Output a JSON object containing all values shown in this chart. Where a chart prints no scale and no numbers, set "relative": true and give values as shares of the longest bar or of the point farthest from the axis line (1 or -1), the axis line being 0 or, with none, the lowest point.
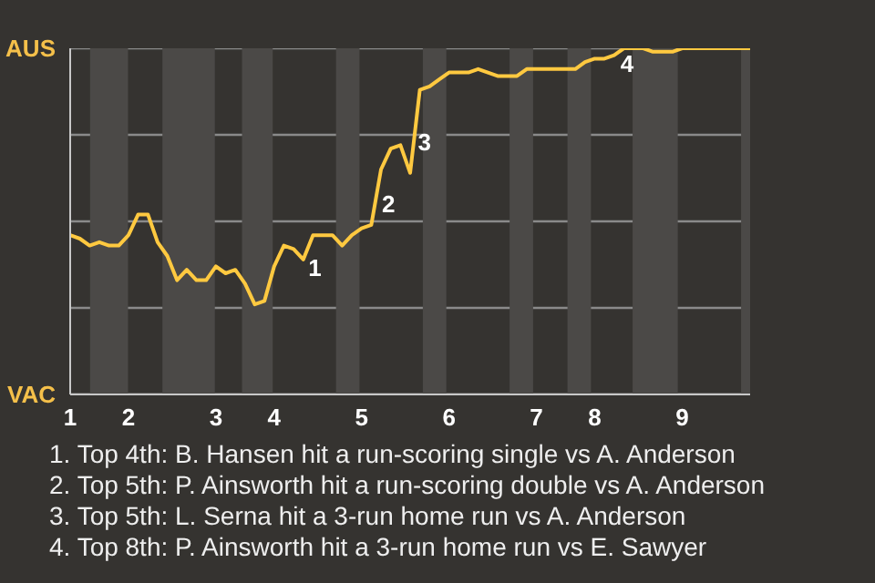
{
  "chart_data": {
    "type": "line",
    "relative": true,
    "categories": [
      "1",
      null,
      null,
      null,
      null,
      null,
      "2",
      null,
      null,
      null,
      null,
      null,
      null,
      null,
      null,
      "3",
      null,
      null,
      null,
      null,
      null,
      "4",
      null,
      null,
      null,
      null,
      null,
      null,
      null,
      null,
      "5",
      null,
      null,
      null,
      null,
      null,
      null,
      null,
      null,
      "6",
      null,
      null,
      null,
      null,
      null,
      null,
      null,
      null,
      "7",
      null,
      null,
      null,
      null,
      null,
      "8",
      null,
      null,
      null,
      null,
      null,
      null,
      null,
      null,
      "9",
      null,
      null,
      null,
      null,
      null,
      null,
      null
    ],
    "series": [
      {
        "color": "#ffc940",
        "values": [
          0.46,
          0.45,
          0.43,
          0.44,
          0.43,
          0.43,
          0.46,
          0.52,
          0.52,
          0.44,
          0.4,
          0.33,
          0.36,
          0.33,
          0.33,
          0.37,
          0.35,
          0.36,
          0.32,
          0.26,
          0.27,
          0.37,
          0.43,
          0.42,
          0.39,
          0.46,
          0.46,
          0.46,
          0.43,
          0.46,
          0.48,
          0.49,
          0.65,
          0.71,
          0.72,
          0.64,
          0.88,
          0.89,
          0.91,
          0.93,
          0.93,
          0.93,
          0.94,
          0.93,
          0.92,
          0.92,
          0.92,
          0.94,
          0.94,
          0.94,
          0.94,
          0.94,
          0.94,
          0.96,
          0.97,
          0.97,
          0.98,
          1.0,
          1.0,
          1.0,
          0.99,
          0.99,
          0.99,
          1.0,
          1.0,
          1.0,
          1.0,
          1.0,
          1.0,
          1.0,
          1.0
        ]
      }
    ],
    "ref_lines": [
      {
        "axis": "y",
        "value": 0,
        "label": "VAC",
        "color": "#c8c8c8"
      },
      {
        "axis": "y",
        "value": 0.25,
        "label": null,
        "color": "#8a8a8a"
      },
      {
        "axis": "y",
        "value": 0.5,
        "label": null,
        "color": "#8a8a8a"
      },
      {
        "axis": "y",
        "value": 0.75,
        "label": null,
        "color": "#8a8a8a"
      },
      {
        "axis": "y",
        "value": 1,
        "label": "AUS",
        "color": "#8a8a8a"
      }
    ],
    "annotations": [
      "1",
      "2",
      "3",
      "4",
      "1. Top 4th: B. Hansen hit a run-scoring single vs A. Anderson",
      "2. Top 5th: P. Ainsworth hit a run-scoring double vs A. Anderson",
      "3. Top 5th: L. Serna hit a 3-run home run vs A. Anderson",
      "4. Top 8th: P. Ainsworth hit a 3-run home run vs E. Sawyer"
    ]
  }
}
